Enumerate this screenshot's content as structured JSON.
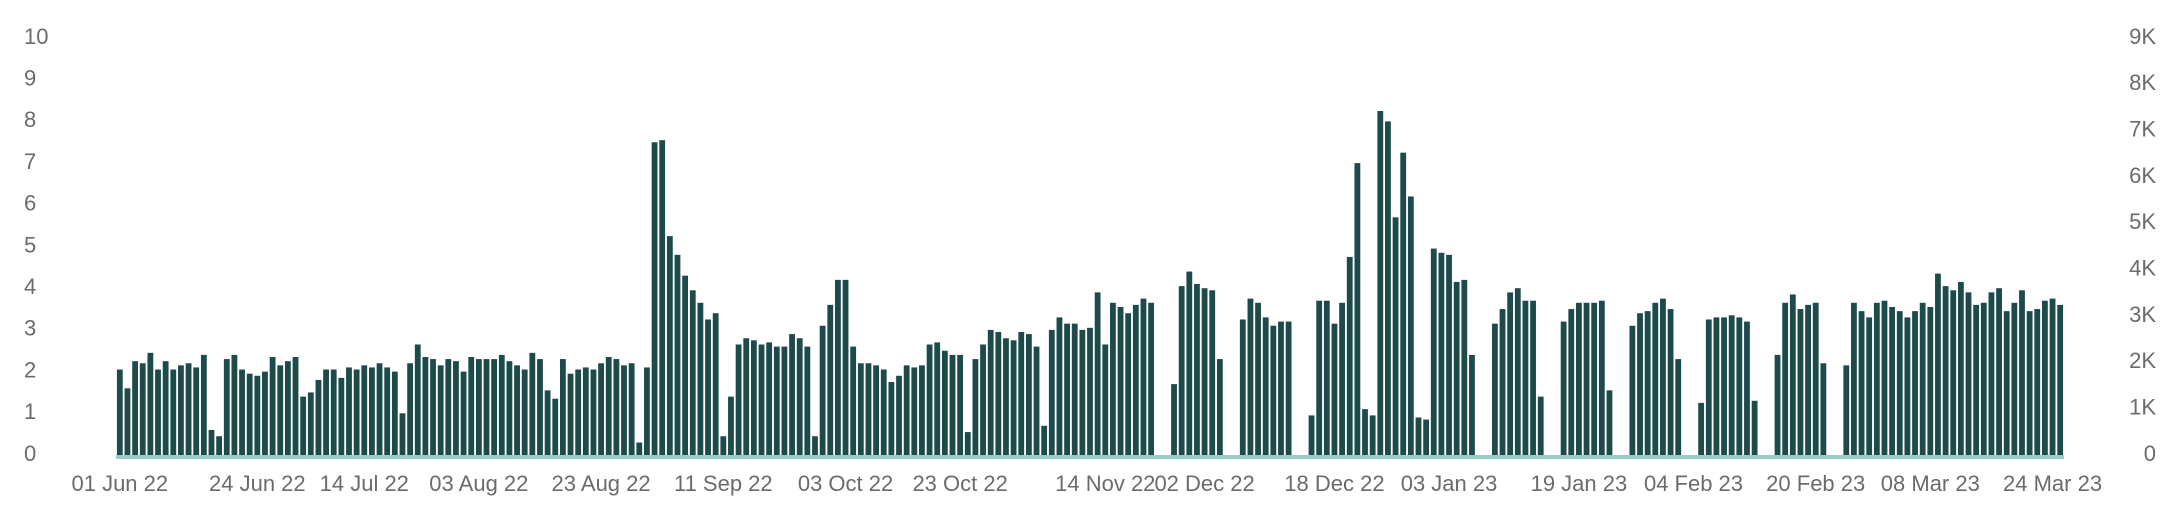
{
  "chart_data": {
    "type": "bar",
    "categories": [
      "01 Jun 22",
      null,
      null,
      null,
      null,
      null,
      null,
      null,
      null,
      null,
      null,
      null,
      null,
      null,
      null,
      null,
      null,
      null,
      "24 Jun 22",
      null,
      null,
      null,
      null,
      null,
      null,
      null,
      null,
      null,
      null,
      null,
      null,
      null,
      "14 Jul 22",
      null,
      null,
      null,
      null,
      null,
      null,
      null,
      null,
      null,
      null,
      null,
      null,
      null,
      null,
      "03 Aug 22",
      null,
      null,
      null,
      null,
      null,
      null,
      null,
      null,
      null,
      null,
      null,
      null,
      null,
      null,
      null,
      "23 Aug 22",
      null,
      null,
      null,
      null,
      null,
      null,
      null,
      null,
      null,
      null,
      null,
      null,
      null,
      null,
      null,
      "11 Sep 22",
      null,
      null,
      null,
      null,
      null,
      null,
      null,
      null,
      null,
      null,
      null,
      null,
      null,
      null,
      null,
      "03 Oct 22",
      null,
      null,
      null,
      null,
      null,
      null,
      null,
      null,
      null,
      null,
      null,
      null,
      null,
      null,
      "23 Oct 22",
      null,
      null,
      null,
      null,
      null,
      null,
      null,
      null,
      null,
      null,
      null,
      null,
      null,
      null,
      null,
      null,
      null,
      null,
      "14 Nov 22",
      null,
      null,
      null,
      null,
      null,
      null,
      null,
      null,
      null,
      null,
      null,
      null,
      "02 Dec 22",
      null,
      null,
      null,
      null,
      null,
      null,
      null,
      null,
      null,
      null,
      null,
      null,
      null,
      null,
      null,
      null,
      "18 Dec 22",
      null,
      null,
      null,
      null,
      null,
      null,
      null,
      null,
      null,
      null,
      null,
      null,
      null,
      null,
      "03 Jan 23",
      null,
      null,
      null,
      null,
      null,
      null,
      null,
      null,
      null,
      null,
      null,
      null,
      null,
      null,
      null,
      null,
      "19 Jan 23",
      null,
      null,
      null,
      null,
      null,
      null,
      null,
      null,
      null,
      null,
      null,
      null,
      null,
      null,
      "04 Feb 23",
      null,
      null,
      null,
      null,
      null,
      null,
      null,
      null,
      null,
      null,
      null,
      null,
      null,
      null,
      null,
      "20 Feb 23",
      null,
      null,
      null,
      null,
      null,
      null,
      null,
      null,
      null,
      null,
      null,
      null,
      null,
      null,
      "08 Mar 23",
      null,
      null,
      null,
      null,
      null,
      null,
      null,
      null,
      null,
      null,
      null,
      null,
      null,
      null,
      null,
      "24 Mar 23",
      null
    ],
    "values": [
      2.05,
      1.6,
      2.25,
      2.2,
      2.45,
      2.05,
      2.25,
      2.05,
      2.15,
      2.2,
      2.1,
      2.4,
      0.6,
      0.45,
      2.3,
      2.4,
      2.05,
      1.95,
      1.9,
      2.0,
      2.35,
      2.15,
      2.25,
      2.35,
      1.4,
      1.5,
      1.8,
      2.05,
      2.05,
      1.85,
      2.1,
      2.05,
      2.15,
      2.1,
      2.2,
      2.1,
      2.0,
      1.0,
      2.2,
      2.65,
      2.35,
      2.3,
      2.15,
      2.3,
      2.25,
      2.0,
      2.35,
      2.3,
      2.3,
      2.3,
      2.4,
      2.25,
      2.15,
      2.05,
      2.45,
      2.3,
      1.55,
      1.35,
      2.3,
      1.95,
      2.05,
      2.1,
      2.05,
      2.2,
      2.35,
      2.3,
      2.15,
      2.2,
      0.3,
      2.1,
      7.5,
      7.55,
      5.25,
      4.8,
      4.3,
      3.95,
      3.65,
      3.25,
      3.4,
      0.45,
      1.4,
      2.65,
      2.8,
      2.75,
      2.65,
      2.7,
      2.6,
      2.6,
      2.9,
      2.8,
      2.6,
      0.45,
      3.1,
      3.6,
      4.2,
      4.2,
      2.6,
      2.2,
      2.2,
      2.15,
      2.05,
      1.75,
      1.9,
      2.15,
      2.1,
      2.15,
      2.65,
      2.7,
      2.5,
      2.4,
      2.4,
      0.55,
      2.3,
      2.65,
      3.0,
      2.95,
      2.8,
      2.75,
      2.95,
      2.9,
      2.6,
      0.7,
      3.0,
      3.3,
      3.15,
      3.15,
      3.0,
      3.05,
      3.9,
      2.65,
      3.65,
      3.55,
      3.4,
      3.6,
      3.75,
      3.65,
      0,
      0,
      1.7,
      4.05,
      4.4,
      4.1,
      4.0,
      3.95,
      2.3,
      0,
      0,
      3.25,
      3.75,
      3.65,
      3.3,
      3.1,
      3.2,
      3.2,
      0,
      0,
      0.95,
      3.7,
      3.7,
      3.15,
      3.65,
      4.75,
      7.0,
      1.1,
      0.95,
      8.25,
      8.0,
      5.7,
      7.25,
      6.2,
      0.9,
      0.85,
      4.95,
      4.85,
      4.8,
      4.15,
      4.2,
      2.4,
      0,
      0,
      3.15,
      3.5,
      3.9,
      4.0,
      3.7,
      3.7,
      1.4,
      0,
      0,
      3.2,
      3.5,
      3.65,
      3.65,
      3.65,
      3.7,
      1.55,
      0,
      0,
      3.1,
      3.4,
      3.45,
      3.65,
      3.75,
      3.5,
      2.3,
      0,
      0,
      1.25,
      3.25,
      3.3,
      3.3,
      3.35,
      3.3,
      3.2,
      1.3,
      0,
      0,
      2.4,
      3.65,
      3.85,
      3.5,
      3.6,
      3.65,
      2.2,
      0,
      0,
      2.15,
      3.65,
      3.45,
      3.3,
      3.65,
      3.7,
      3.55,
      3.45,
      3.3,
      3.45,
      3.65,
      3.55,
      4.35,
      4.05,
      3.95,
      4.15,
      3.9,
      3.6,
      3.65,
      3.9,
      4.0,
      3.45,
      3.65,
      3.95,
      3.45,
      3.5,
      3.7,
      3.75,
      3.6
    ],
    "color": "#1d4a4b",
    "ylim": [
      0,
      10
    ],
    "yticks": [
      0,
      1,
      2,
      3,
      4,
      5,
      6,
      7,
      8,
      9,
      10
    ],
    "y2lim": [
      0,
      9000
    ],
    "y2ticks": [
      0,
      {
        "value": 1000,
        "label": "1K"
      },
      {
        "value": 2000,
        "label": "2K"
      },
      {
        "value": 3000,
        "label": "3K"
      },
      {
        "value": 4000,
        "label": "4K"
      },
      {
        "value": 5000,
        "label": "5K"
      },
      {
        "value": 6000,
        "label": "6K"
      },
      {
        "value": 7000,
        "label": "7K"
      },
      {
        "value": 8000,
        "label": "8K"
      },
      {
        "value": 9000,
        "label": "9K"
      }
    ],
    "grid": false
  }
}
